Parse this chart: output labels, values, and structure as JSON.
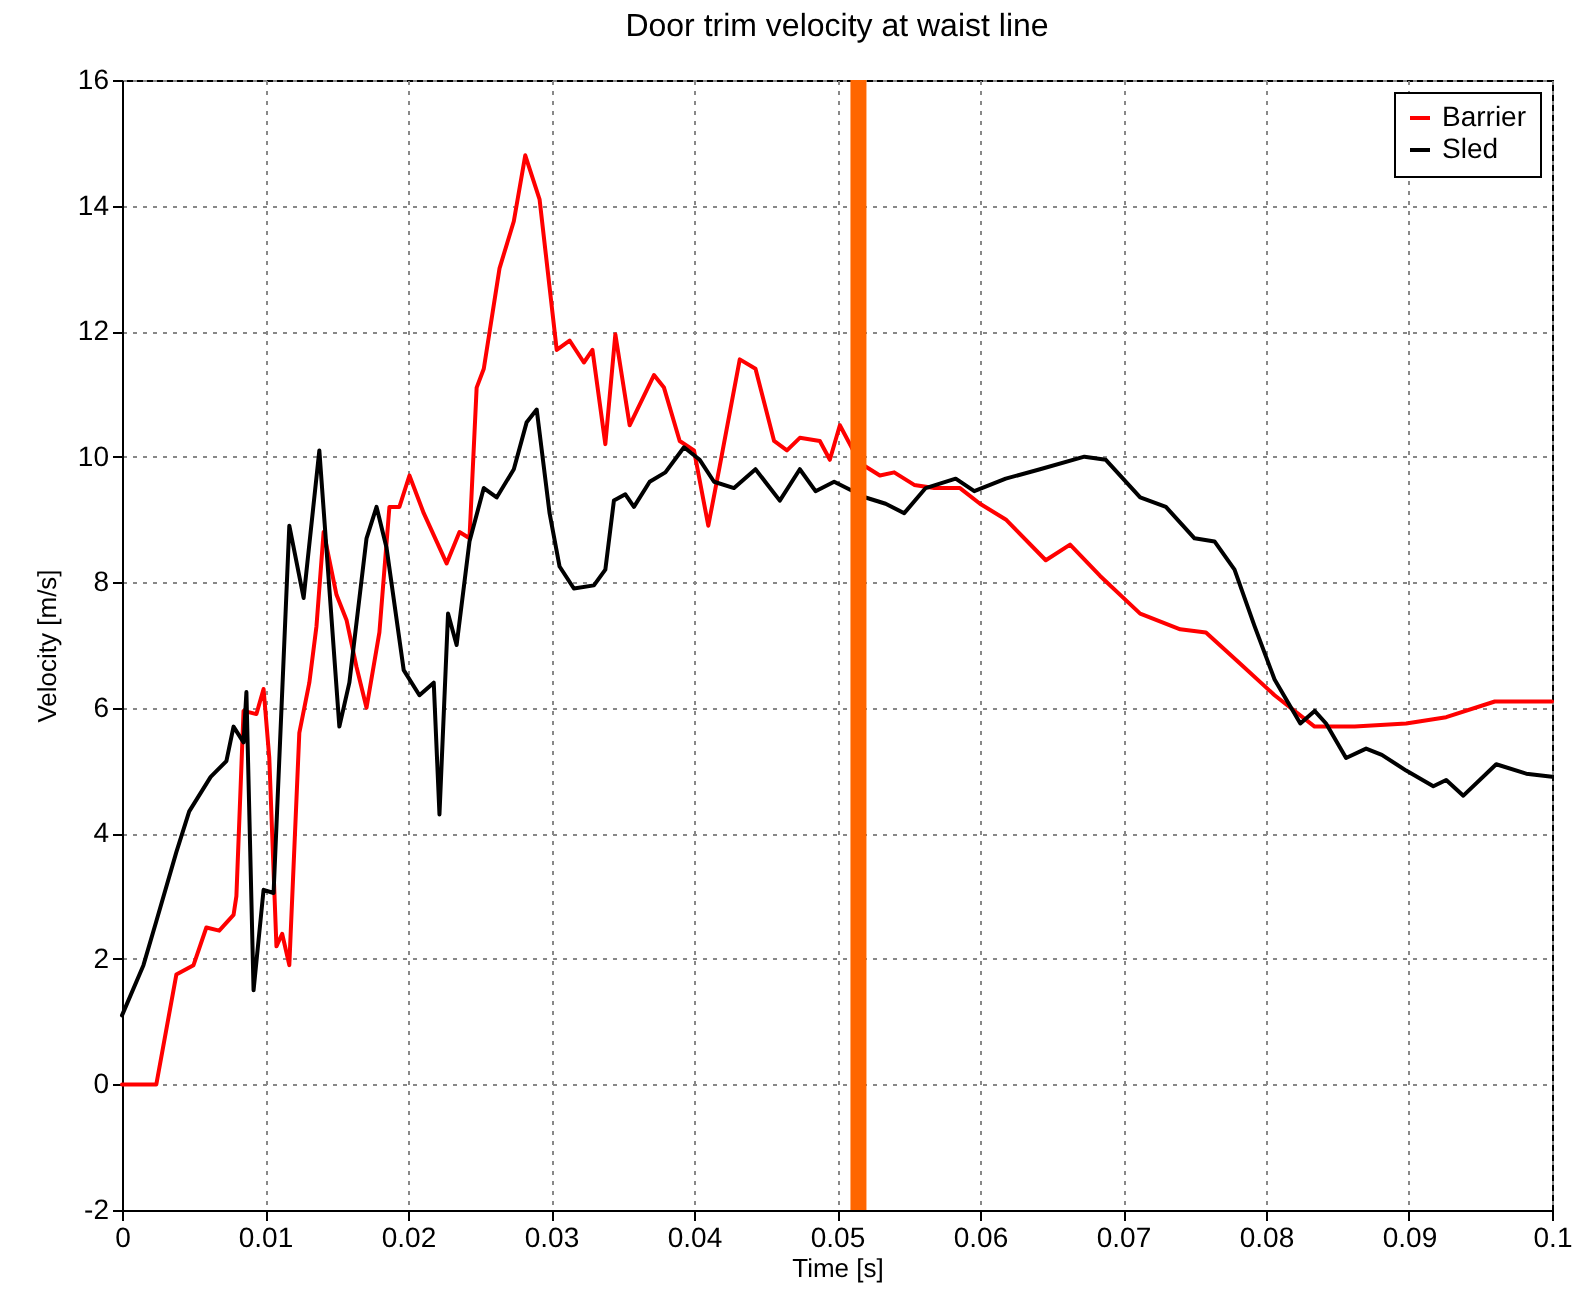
{
  "chart_data": {
    "type": "line",
    "title": "Door trim velocity at waist line",
    "xlabel": "Time [s]",
    "ylabel": "Velocity [m/s]",
    "xlim": [
      0,
      0.1
    ],
    "xticks": [
      0,
      0.01,
      0.02,
      0.03,
      0.04,
      0.05,
      0.06,
      0.07,
      0.08,
      0.09,
      0.1
    ],
    "ylim": [
      -2,
      16
    ],
    "yticks": [
      -2,
      0,
      2,
      4,
      6,
      8,
      10,
      12,
      14,
      16
    ],
    "grid": true,
    "legend": "top right",
    "line_style": "solid",
    "marker": "none",
    "ref_lines": [
      {
        "axis": "x",
        "value": 0.0515,
        "color": "#ff6600"
      }
    ],
    "series": [
      {
        "name": "Barrier",
        "color": "#ff0000",
        "x": [
          0,
          0.0024,
          0.0038,
          0.005,
          0.0059,
          0.0068,
          0.0078,
          0.008,
          0.0085,
          0.0094,
          0.0099,
          0.0103,
          0.0108,
          0.0112,
          0.0117,
          0.0124,
          0.0131,
          0.0136,
          0.0141,
          0.015,
          0.0157,
          0.0164,
          0.0171,
          0.018,
          0.0187,
          0.0194,
          0.0201,
          0.0211,
          0.022,
          0.0227,
          0.0236,
          0.0243,
          0.0248,
          0.0253,
          0.0264,
          0.0274,
          0.0282,
          0.0292,
          0.0299,
          0.0304,
          0.0313,
          0.0323,
          0.0329,
          0.0338,
          0.0345,
          0.0355,
          0.0372,
          0.0379,
          0.039,
          0.04,
          0.041,
          0.0418,
          0.0432,
          0.0443,
          0.0456,
          0.0465,
          0.0474,
          0.0488,
          0.0495,
          0.0502,
          0.0516,
          0.053,
          0.054,
          0.0554,
          0.0568,
          0.0586,
          0.06,
          0.0618,
          0.0646,
          0.0663,
          0.0684,
          0.0712,
          0.074,
          0.0758,
          0.0782,
          0.0806,
          0.0834,
          0.0862,
          0.0898,
          0.0926,
          0.096,
          0.1
        ],
        "values": [
          0,
          0,
          1.75,
          1.9,
          2.5,
          2.45,
          2.7,
          3.0,
          5.95,
          5.9,
          6.3,
          5.2,
          2.2,
          2.4,
          1.9,
          5.6,
          6.4,
          7.3,
          8.8,
          7.8,
          7.4,
          6.65,
          6.0,
          7.2,
          9.2,
          9.2,
          9.7,
          9.1,
          8.65,
          8.3,
          8.8,
          8.7,
          11.1,
          11.4,
          13.0,
          13.75,
          14.8,
          14.1,
          12.7,
          11.7,
          11.85,
          11.5,
          11.7,
          10.2,
          11.95,
          10.5,
          11.3,
          11.1,
          10.25,
          10.1,
          8.9,
          9.85,
          11.55,
          11.4,
          10.25,
          10.1,
          10.3,
          10.25,
          9.95,
          10.5,
          9.9,
          9.7,
          9.75,
          9.55,
          9.5,
          9.5,
          9.25,
          9.0,
          8.35,
          8.6,
          8.1,
          7.5,
          7.25,
          7.2,
          6.7,
          6.2,
          5.7,
          5.7,
          5.75,
          5.85,
          6.1,
          6.1
        ]
      },
      {
        "name": "Sled",
        "color": "#000000",
        "x": [
          0,
          0.0015,
          0.0024,
          0.0038,
          0.0047,
          0.0062,
          0.0073,
          0.0078,
          0.0085,
          0.0087,
          0.0092,
          0.0099,
          0.0106,
          0.0117,
          0.0127,
          0.0138,
          0.0152,
          0.0159,
          0.0171,
          0.0178,
          0.0185,
          0.0197,
          0.0208,
          0.0218,
          0.0222,
          0.0228,
          0.0234,
          0.0243,
          0.0253,
          0.0262,
          0.0274,
          0.0283,
          0.029,
          0.0299,
          0.0306,
          0.0316,
          0.033,
          0.0338,
          0.0344,
          0.0352,
          0.0358,
          0.0369,
          0.038,
          0.0393,
          0.0404,
          0.0414,
          0.0428,
          0.0443,
          0.046,
          0.0474,
          0.0485,
          0.0498,
          0.052,
          0.0534,
          0.0547,
          0.0562,
          0.0583,
          0.0596,
          0.0618,
          0.0642,
          0.0673,
          0.0688,
          0.0712,
          0.073,
          0.075,
          0.0764,
          0.0778,
          0.0792,
          0.0806,
          0.0824,
          0.0834,
          0.0842,
          0.0856,
          0.087,
          0.0881,
          0.0898,
          0.0917,
          0.0926,
          0.0938,
          0.0961,
          0.0982,
          0.1
        ],
        "values": [
          1.1,
          1.9,
          2.6,
          3.7,
          4.35,
          4.9,
          5.15,
          5.7,
          5.45,
          6.25,
          1.5,
          3.1,
          3.05,
          8.9,
          7.75,
          10.1,
          5.7,
          6.4,
          8.7,
          9.2,
          8.55,
          6.6,
          6.2,
          6.4,
          4.3,
          7.5,
          7.0,
          8.65,
          9.5,
          9.35,
          9.8,
          10.55,
          10.75,
          9.1,
          8.25,
          7.9,
          7.95,
          8.2,
          9.3,
          9.4,
          9.2,
          9.6,
          9.75,
          10.15,
          9.95,
          9.6,
          9.5,
          9.8,
          9.3,
          9.8,
          9.45,
          9.6,
          9.35,
          9.25,
          9.1,
          9.5,
          9.65,
          9.45,
          9.65,
          9.8,
          10.0,
          9.95,
          9.35,
          9.2,
          8.7,
          8.65,
          8.2,
          7.3,
          6.45,
          5.75,
          5.95,
          5.75,
          5.2,
          5.35,
          5.25,
          5.0,
          4.75,
          4.85,
          4.6,
          5.1,
          4.95,
          4.9
        ]
      }
    ]
  }
}
